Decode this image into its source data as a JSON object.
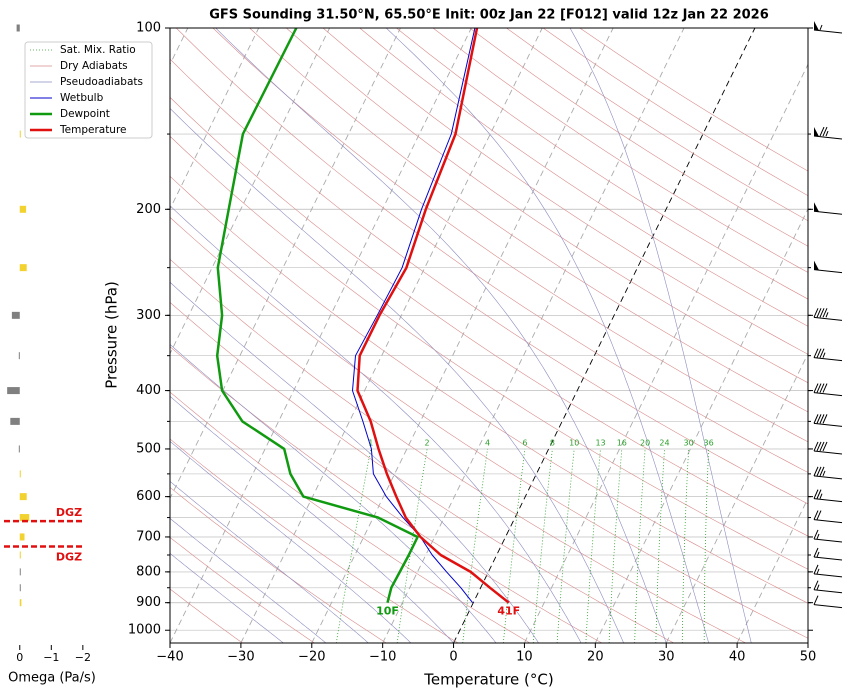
{
  "chart_data": {
    "type": "skewt",
    "title": "GFS Sounding 31.50°N, 65.50°E Init: 00z Jan 22 [F012] valid 12z Jan 22 2026",
    "xlabel": "Temperature (°C)",
    "ylabel": "Pressure (hPa)",
    "xlim": [
      -40,
      50
    ],
    "ylim": [
      1050,
      100
    ],
    "xticks": [
      {
        "value": -40,
        "label": "−40"
      },
      {
        "value": -30,
        "label": "−30"
      },
      {
        "value": -20,
        "label": "−20"
      },
      {
        "value": -10,
        "label": "−10"
      },
      0,
      10,
      20,
      30,
      40,
      50
    ],
    "yticks": [
      100,
      200,
      300,
      400,
      500,
      600,
      700,
      800,
      900,
      1000
    ],
    "grid": true,
    "legend": "upper left",
    "levels": [
      900,
      850,
      800,
      750,
      700,
      650,
      600,
      550,
      500,
      450,
      400,
      350,
      300,
      250,
      200,
      150,
      100
    ],
    "series": [
      {
        "name": "Wetbulb",
        "color": "#0000cc",
        "linewidth": 1,
        "values": [
          -0.1,
          -2.8,
          -5.9,
          -9.1,
          -12.0,
          -15.8,
          -19.6,
          -23.0,
          -25.0,
          -28.1,
          -31.7,
          -33.7,
          -33.4,
          -33.2,
          -34.5,
          -35.5,
          -39.5
        ]
      },
      {
        "name": "Dewpoint",
        "color": "#109a10",
        "linewidth": 2.5,
        "surface_label": "10F",
        "values": [
          -12.1,
          -12.6,
          -12.5,
          -12.4,
          -12.4,
          -19.3,
          -31.3,
          -34.7,
          -37.3,
          -45.1,
          -50.1,
          -53.2,
          -55.3,
          -59.2,
          -61.7,
          -64.9,
          -64.7
        ]
      },
      {
        "name": "Temperature",
        "color": "#e01010",
        "linewidth": 2.5,
        "surface_label": "41F",
        "values": [
          5.0,
          1.3,
          -2.5,
          -7.9,
          -12.0,
          -15.4,
          -18.2,
          -21.1,
          -24.0,
          -27.0,
          -31.0,
          -33.1,
          -33.1,
          -32.6,
          -33.9,
          -34.9,
          -39.2
        ]
      }
    ],
    "reference_lines": [
      {
        "name": "Sat. Mix. Ratio",
        "color": "#2ca02c"
      },
      {
        "name": "Dry Adiabats",
        "color": "#d98c8c"
      },
      {
        "name": "Pseudoadiabats",
        "color": "#8c8cc0"
      }
    ],
    "mixing_ratios": [
      1,
      2,
      4,
      6,
      8,
      10,
      13,
      16,
      20,
      24,
      30,
      36
    ],
    "wind_speed": [
      10,
      15,
      15,
      15,
      15,
      20,
      25,
      35,
      40,
      40,
      40,
      35,
      45,
      50,
      50,
      75,
      55
    ],
    "omega": {
      "xlabel": "Omega (Pa/s)",
      "xlim": [
        0.5,
        -2.1
      ],
      "xticks": [
        0,
        {
          "value": -1,
          "label": "−1"
        },
        {
          "value": -2,
          "label": "−2"
        }
      ],
      "rising_color": "#f2d22e",
      "sinking_color": "#808080",
      "values": [
        -0.05,
        0,
        0,
        -0.03,
        -0.15,
        -0.3,
        -0.22,
        -0.03,
        0.03,
        0.3,
        0.4,
        0.03,
        0.25,
        -0.22,
        -0.2,
        -0.03,
        0.1
      ]
    },
    "dgz": {
      "label": "DGZ",
      "color": "#e01010",
      "pressures": [
        659,
        726
      ]
    }
  }
}
